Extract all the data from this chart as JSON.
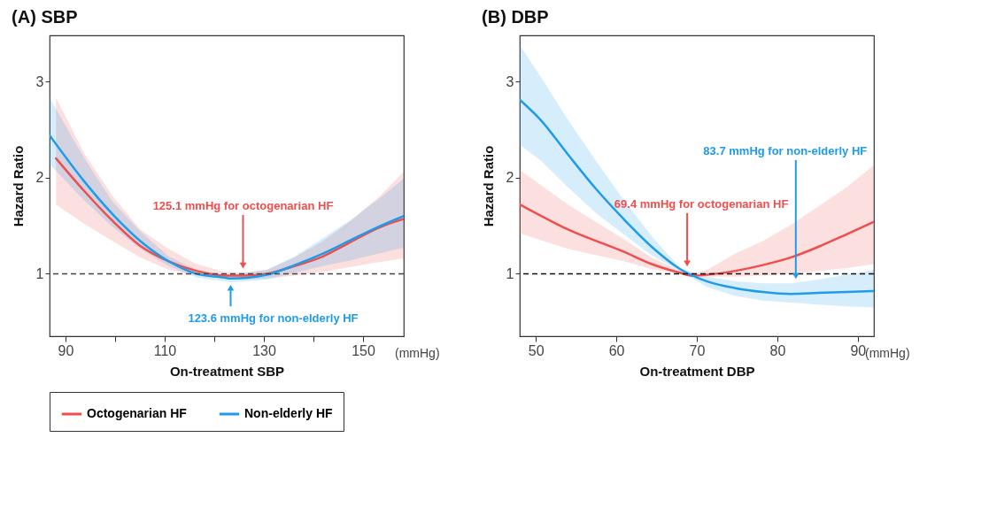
{
  "chart_data": [
    {
      "type": "line",
      "title": "(A) SBP",
      "xlabel": "On-treatment SBP",
      "ylabel": "Hazard Ratio",
      "xlim": [
        86.8,
        158.2
      ],
      "ylim": [
        0.35,
        3.48
      ],
      "xticks": [
        90,
        {
          "value": 100,
          "label": null
        },
        110,
        {
          "value": 120,
          "label": null
        },
        130,
        {
          "value": 140,
          "label": null
        },
        150
      ],
      "yticks": [
        1,
        2,
        3
      ],
      "grid": false,
      "legend": "bottom",
      "line_style": "solid",
      "marker": "none",
      "ref_lines": [
        {
          "axis": "y",
          "value": 1,
          "label": null,
          "color": "#444444",
          "line_style": "dashed"
        }
      ],
      "annotations": [
        {
          "text": "125.1 mmHg for octogenarian HF",
          "x": 125.8,
          "y": 1.04
        },
        {
          "text": "123.6 mmHg for non-elderly HF",
          "x": 123.3,
          "y": 0.9
        },
        "(mmHg)"
      ],
      "series": [
        {
          "name": "Octogenarian HF",
          "color": "#f04d4d",
          "x": [
            88.1,
            93.8,
            99.5,
            105.1,
            110.8,
            116.4,
            122.1,
            125.8,
            130.6,
            136.2,
            141.9,
            147.5,
            153.2,
            158.2
          ],
          "values": [
            2.2,
            1.86,
            1.55,
            1.29,
            1.13,
            1.03,
            0.98,
            0.98,
            1.0,
            1.08,
            1.18,
            1.33,
            1.48,
            1.57
          ],
          "lower": [
            1.72,
            1.52,
            1.34,
            1.17,
            1.04,
            0.98,
            0.95,
            0.94,
            0.95,
            0.98,
            1.02,
            1.07,
            1.12,
            1.16
          ],
          "upper": [
            2.83,
            2.25,
            1.81,
            1.46,
            1.26,
            1.1,
            1.02,
            1.01,
            1.04,
            1.17,
            1.34,
            1.55,
            1.8,
            2.06
          ]
        },
        {
          "name": "Non-elderly HF",
          "color": "#1e9be9",
          "x": [
            86.8,
            93.8,
            99.5,
            105.1,
            110.8,
            116.4,
            122.1,
            123.3,
            130.6,
            136.2,
            141.9,
            147.5,
            153.2,
            158.2
          ],
          "values": [
            2.44,
            1.96,
            1.62,
            1.34,
            1.13,
            1.0,
            0.96,
            0.95,
            0.99,
            1.09,
            1.21,
            1.35,
            1.49,
            1.6
          ],
          "lower": [
            2.14,
            1.76,
            1.49,
            1.26,
            1.08,
            0.96,
            0.92,
            0.91,
            0.94,
            1.01,
            1.08,
            1.14,
            1.21,
            1.27
          ],
          "upper": [
            2.83,
            2.2,
            1.75,
            1.44,
            1.18,
            1.04,
            0.99,
            0.99,
            1.04,
            1.18,
            1.37,
            1.56,
            1.78,
            1.99
          ]
        }
      ]
    },
    {
      "type": "line",
      "title": "(B) DBP",
      "xlabel": "On-treatment DBP",
      "ylabel": "Hazard Ratio",
      "xlim": [
        48.0,
        92.0
      ],
      "ylim": [
        0.35,
        3.48
      ],
      "xticks": [
        50,
        60,
        70,
        80,
        90
      ],
      "yticks": [
        1,
        2,
        3
      ],
      "grid": false,
      "legend": "bottom",
      "line_style": "solid",
      "marker": "none",
      "ref_lines": [
        {
          "axis": "y",
          "value": 1,
          "label": null,
          "color": "#111111",
          "line_style": "dashed"
        }
      ],
      "annotations": [
        {
          "text": "69.4 mmHg for octogenarian HF",
          "x": 68.8,
          "y": 1.06
        },
        {
          "text": "83.7 mmHg for non-elderly HF",
          "x": 82.3,
          "y": 0.93
        },
        "(mmHg)"
      ],
      "series": [
        {
          "name": "Octogenarian HF",
          "color": "#f04d4d",
          "x": [
            48.0,
            54.0,
            60.9,
            64.4,
            67.9,
            69.4,
            71.3,
            74.8,
            78.2,
            81.7,
            85.1,
            88.6,
            92.0
          ],
          "values": [
            1.72,
            1.46,
            1.23,
            1.1,
            1.01,
            0.98,
            0.99,
            1.03,
            1.09,
            1.17,
            1.28,
            1.41,
            1.54
          ],
          "lower": [
            1.42,
            1.26,
            1.13,
            1.05,
            1.0,
            0.97,
            0.97,
            0.97,
            0.98,
            1.0,
            1.03,
            1.06,
            1.1
          ],
          "upper": [
            2.08,
            1.72,
            1.36,
            1.17,
            1.03,
            1.0,
            1.04,
            1.21,
            1.34,
            1.51,
            1.7,
            1.9,
            2.13
          ]
        },
        {
          "name": "Non-elderly HF",
          "color": "#1e9be9",
          "x": [
            48.0,
            50.6,
            54.0,
            57.5,
            60.9,
            64.4,
            67.9,
            71.3,
            74.8,
            78.2,
            81.7,
            85.1,
            88.6,
            92.0
          ],
          "values": [
            2.81,
            2.6,
            2.24,
            1.88,
            1.57,
            1.28,
            1.05,
            0.92,
            0.85,
            0.81,
            0.79,
            0.8,
            0.81,
            0.82
          ],
          "lower": [
            2.34,
            2.18,
            1.9,
            1.63,
            1.41,
            1.19,
            1.03,
            0.86,
            0.77,
            0.72,
            0.7,
            0.68,
            0.66,
            0.65
          ],
          "upper": [
            3.38,
            3.05,
            2.6,
            2.17,
            1.77,
            1.39,
            1.06,
            0.97,
            0.92,
            0.9,
            0.9,
            0.94,
            0.99,
            1.04
          ]
        }
      ]
    }
  ]
}
